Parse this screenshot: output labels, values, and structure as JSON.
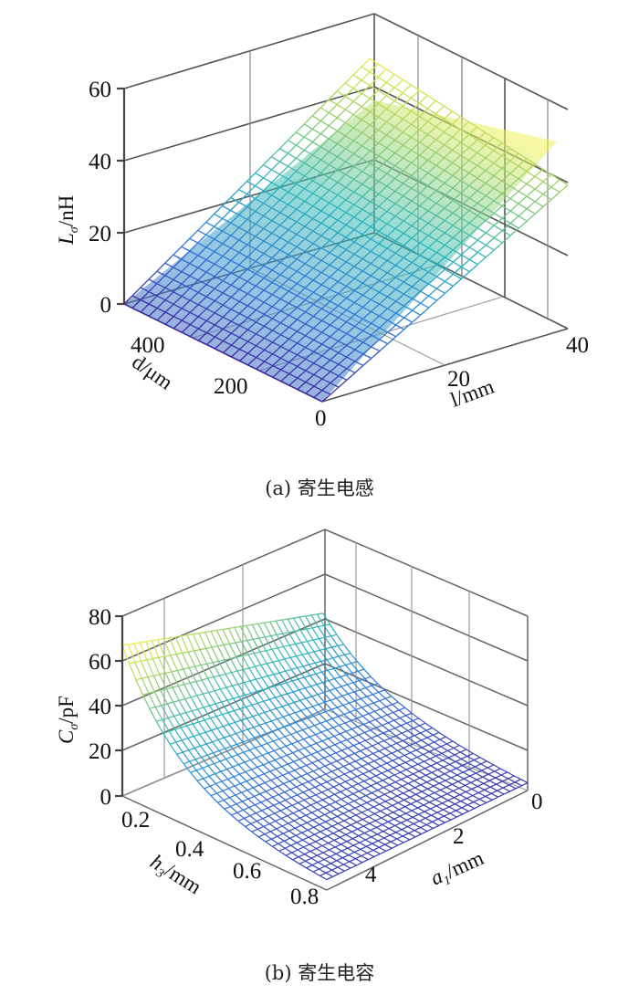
{
  "chart_data": [
    {
      "type": "surface3d",
      "caption": "(a) 寄生电感",
      "title": "",
      "zlabel": "Lσ/nH",
      "zlabel_main": "L",
      "zlabel_sub": "σ",
      "zlabel_unit": "/nH",
      "xlabel": "d/μm",
      "ylabel": "l/mm",
      "z_ticks": [
        "0",
        "20",
        "40",
        "60"
      ],
      "x_ticks": [
        "0",
        "200",
        "400"
      ],
      "y_ticks": [
        "0",
        "20",
        "40"
      ],
      "zlim": [
        0,
        60
      ],
      "xlim": [
        0,
        500
      ],
      "ylim": [
        0,
        40
      ],
      "grid": true,
      "colormap": "parula",
      "description": "Inductance rises roughly linearly with l and decreases slightly with d",
      "x": [
        0,
        100,
        200,
        300,
        400,
        500
      ],
      "y": [
        0,
        10,
        20,
        30,
        40
      ],
      "z": [
        [
          0,
          12,
          24,
          36,
          48
        ],
        [
          0,
          11.5,
          23,
          34.5,
          46
        ],
        [
          0,
          11,
          22,
          33,
          44
        ],
        [
          0,
          10.5,
          21,
          31.5,
          42
        ],
        [
          0,
          10,
          20,
          30,
          40
        ],
        [
          0,
          9.5,
          19,
          28.5,
          38
        ]
      ]
    },
    {
      "type": "surface3d",
      "caption": "(b) 寄生电容",
      "title": "",
      "zlabel": "Cσ/pF",
      "zlabel_main": "C",
      "zlabel_sub": "σ",
      "zlabel_unit": "/pF",
      "xlabel": "h3/mm",
      "xlabel_main": "h",
      "xlabel_sub": "3",
      "xlabel_unit": "/mm",
      "ylabel": "a1/mm",
      "ylabel_main": "a",
      "ylabel_sub": "1",
      "ylabel_unit": "/mm",
      "z_ticks": [
        "0",
        "20",
        "40",
        "60",
        "80"
      ],
      "x_ticks": [
        "0.2",
        "0.4",
        "0.6",
        "0.8"
      ],
      "y_ticks": [
        "0",
        "2",
        "4"
      ],
      "zlim": [
        0,
        80
      ],
      "xlim": [
        0.1,
        0.8
      ],
      "ylim": [
        0,
        5
      ],
      "grid": true,
      "colormap": "parula",
      "description": "Capacitance highest (~65 pF) at small h3 and large a1, decaying toward ~0 at large h3",
      "x": [
        0.1,
        0.2,
        0.4,
        0.6,
        0.8
      ],
      "y": [
        0,
        1,
        2,
        3,
        4,
        5
      ],
      "z": [
        [
          40,
          45,
          50,
          55,
          60,
          65
        ],
        [
          20,
          23,
          26,
          30,
          33,
          36
        ],
        [
          9,
          11,
          13,
          15,
          17,
          18
        ],
        [
          5,
          6,
          7,
          8,
          9,
          10
        ],
        [
          3,
          3.5,
          4,
          5,
          5.5,
          6
        ]
      ]
    }
  ]
}
